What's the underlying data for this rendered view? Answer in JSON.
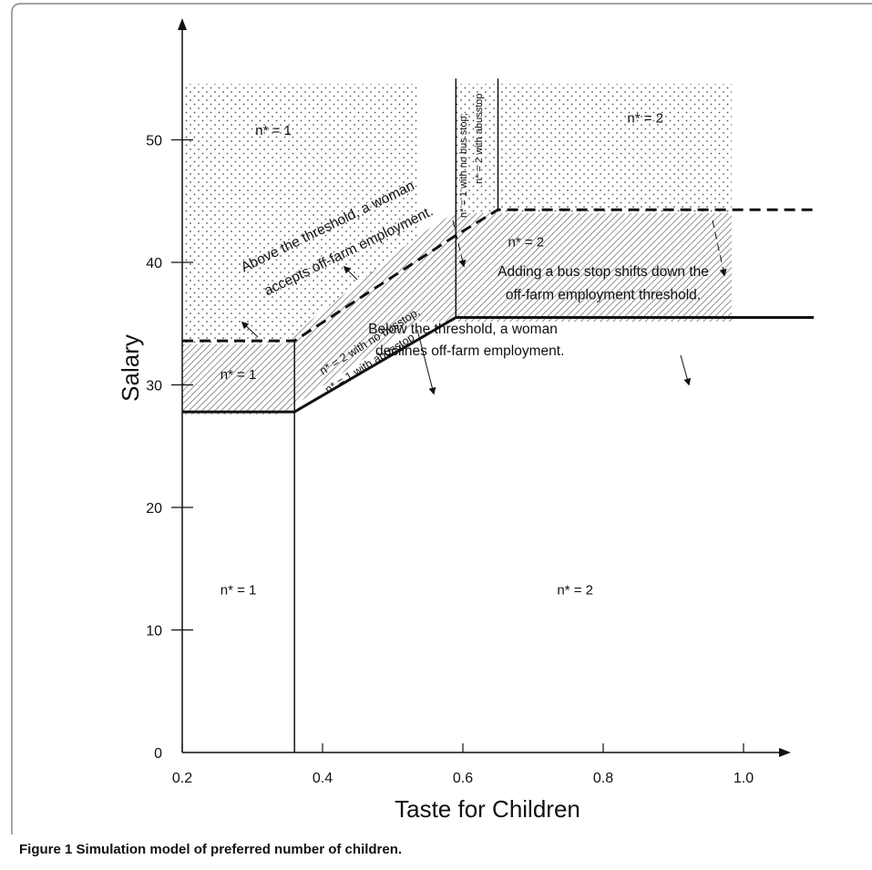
{
  "figure": {
    "caption_label": "Figure 1",
    "caption_text": "Simulation model of preferred number of children."
  },
  "chart_data": {
    "type": "line",
    "xlabel": "Taste for Children",
    "ylabel": "Salary",
    "xlim": [
      0.2,
      1.1
    ],
    "ylim": [
      0,
      55
    ],
    "x_ticks": [
      "0.2",
      "0.4",
      "0.6",
      "0.8",
      "1.0"
    ],
    "x_tick_values": [
      0.2,
      0.4,
      0.6,
      0.8,
      1.0
    ],
    "y_ticks": [
      "0",
      "10",
      "20",
      "30",
      "40",
      "50"
    ],
    "y_tick_values": [
      0,
      10,
      20,
      30,
      40,
      50
    ],
    "grid": false,
    "series": [
      {
        "name": "",
        "style": "solid-thick",
        "x": [
          0.2,
          0.36,
          0.59,
          1.1
        ],
        "y": [
          27.8,
          27.8,
          35.5,
          35.5
        ]
      },
      {
        "name": "",
        "style": "dashed-thick",
        "x": [
          0.2,
          0.36,
          0.59,
          0.65,
          1.1
        ],
        "y": [
          33.6,
          33.6,
          42.2,
          44.3,
          44.3
        ]
      },
      {
        "name": "",
        "style": "solid-thin",
        "x": [
          0.36,
          0.36
        ],
        "y": [
          0,
          33.6
        ]
      },
      {
        "name": "",
        "style": "solid-thin",
        "x": [
          0.59,
          0.59
        ],
        "y": [
          35.5,
          55
        ]
      },
      {
        "name": "",
        "style": "solid-thin",
        "x": [
          0.65,
          0.65
        ],
        "y": [
          44.3,
          55
        ]
      }
    ],
    "region_labels": [
      {
        "text": "n* = 1",
        "x": 0.33,
        "y": 50.4
      },
      {
        "text": "n* = 2",
        "x": 0.86,
        "y": 51.4
      },
      {
        "text": "n* = 2",
        "x": 0.69,
        "y": 41.3
      },
      {
        "text": "n* = 1",
        "x": 0.28,
        "y": 30.5
      },
      {
        "text": "n* = 1",
        "x": 0.28,
        "y": 12.9
      },
      {
        "text": "n* = 2",
        "x": 0.76,
        "y": 12.9
      }
    ],
    "annotations": [
      {
        "text": "Above the threshold, a woman",
        "x": 0.41,
        "y": 42.6,
        "rotate": -26
      },
      {
        "text": "accepts off-farm employment.",
        "x": 0.44,
        "y": 40.6,
        "rotate": -26
      },
      {
        "text": "n* = 2 with no busstop,",
        "x": 0.47,
        "y": 33.3,
        "rotate": -32
      },
      {
        "text": "n* = 1 with abusstop",
        "x": 0.47,
        "y": 31.5,
        "rotate": -32
      },
      {
        "text": "n* = 1 with no bus stop;",
        "x": 0.605,
        "y": 47.9,
        "rotate": -90
      },
      {
        "text": "n* = 2 with abusstop",
        "x": 0.627,
        "y": 50.1,
        "rotate": -90
      },
      {
        "text": "Adding a bus stop shifts down the",
        "x": 0.8,
        "y": 38.9,
        "rotate": 0
      },
      {
        "text": "off-farm employment threshold.",
        "x": 0.8,
        "y": 37.0,
        "rotate": 0
      },
      {
        "text": "Below the threshold, a woman",
        "x": 0.6,
        "y": 34.2,
        "rotate": 0
      },
      {
        "text": "declines off-farm employment.",
        "x": 0.61,
        "y": 32.4,
        "rotate": 0
      }
    ]
  }
}
